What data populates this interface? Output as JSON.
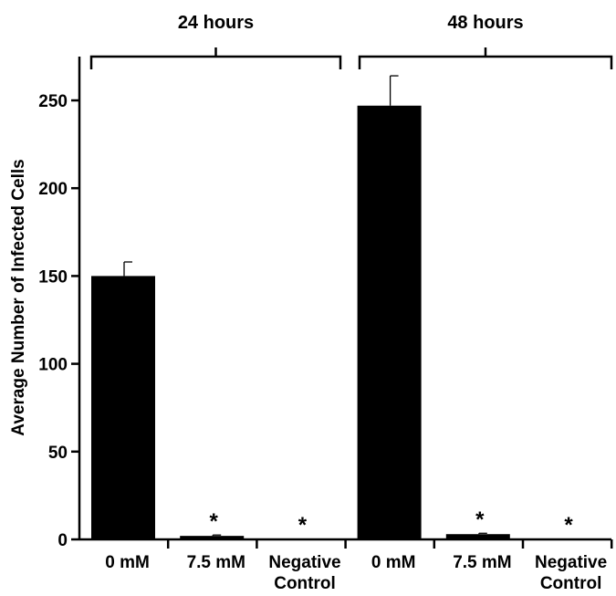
{
  "chart_data": {
    "type": "bar",
    "ylabel": "Average Number of Infected Cells",
    "xlabel": "",
    "ylim": [
      0,
      270
    ],
    "yticks": [
      0,
      50,
      100,
      150,
      200,
      250
    ],
    "bar_color": "#000000",
    "groups": [
      {
        "label": "24 hours",
        "bars": [
          {
            "category": [
              "0 mM"
            ],
            "value": 150,
            "error": 8,
            "significant": false
          },
          {
            "category": [
              "7.5 mM"
            ],
            "value": 2,
            "error": 0.5,
            "significant": true
          },
          {
            "category": [
              "Negative",
              "Control"
            ],
            "value": 0,
            "error": 0,
            "significant": true
          }
        ]
      },
      {
        "label": "48 hours",
        "bars": [
          {
            "category": [
              "0 mM"
            ],
            "value": 247,
            "error": 17,
            "significant": false
          },
          {
            "category": [
              "7.5 mM"
            ],
            "value": 3,
            "error": 0.5,
            "significant": true
          },
          {
            "category": [
              "Negative",
              "Control"
            ],
            "value": 0,
            "error": 0,
            "significant": true
          }
        ]
      }
    ],
    "significance_marker": "*",
    "grid": false,
    "legend": "none"
  }
}
